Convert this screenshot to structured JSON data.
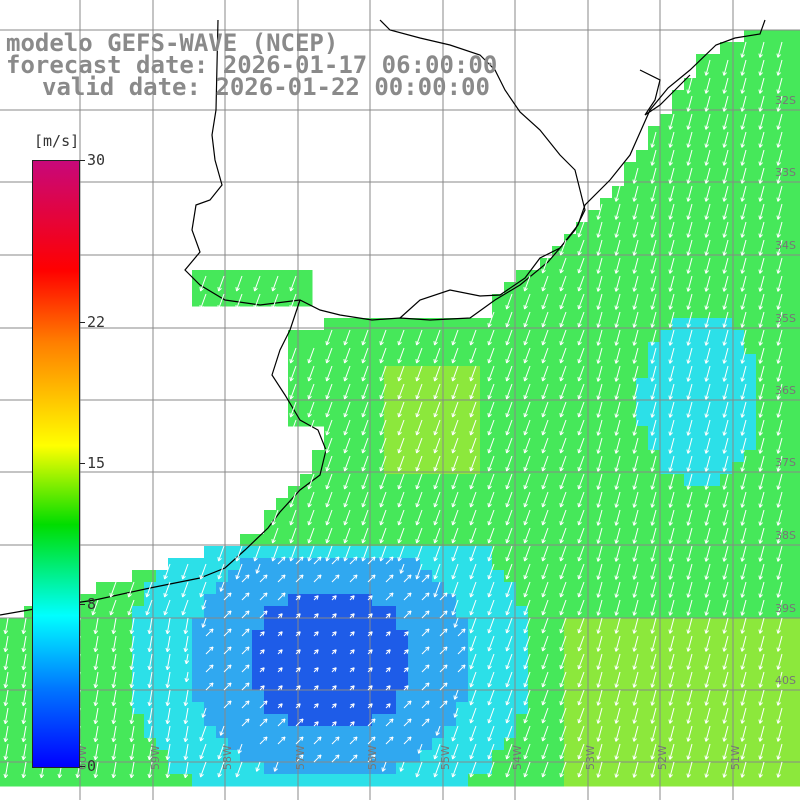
{
  "title": {
    "line1": "modelo GEFS-WAVE (NCEP)",
    "line2": "forecast date: 2026-01-17 06:00:00",
    "line3": "valid date: 2026-01-22 00:00:00"
  },
  "colorbar": {
    "unit": "[m/s]",
    "ticks": [
      {
        "label": "30",
        "value": 30
      },
      {
        "label": "22",
        "value": 22
      },
      {
        "label": "15",
        "value": 15
      },
      {
        "label": "8",
        "value": 8
      },
      {
        "label": "0",
        "value": 0
      }
    ],
    "range": [
      0,
      30
    ],
    "colors": [
      "#0000ff",
      "#0077ff",
      "#00ffff",
      "#00dd00",
      "#ffff00",
      "#ff7f00",
      "#ff0000",
      "#c8087a"
    ]
  },
  "map": {
    "lat_labels": [
      "32S",
      "33S",
      "34S",
      "35S",
      "36S",
      "37S",
      "38S",
      "39S",
      "40S"
    ],
    "lon_labels": [
      "60W",
      "59W",
      "58W",
      "57W",
      "56W",
      "55W",
      "54W",
      "53W",
      "52W",
      "51W"
    ],
    "ocean_colors": {
      "deep_low": "#1e5ce8",
      "low": "#30a8f0",
      "mid_low": "#2ce0e8",
      "mid": "#3fe88a",
      "main": "#46e85a",
      "high": "#8ce83c"
    },
    "land_color": "#ffffff",
    "coast_color": "#000000",
    "grid_color": "#888888",
    "arrow_color": "#ffffff"
  }
}
